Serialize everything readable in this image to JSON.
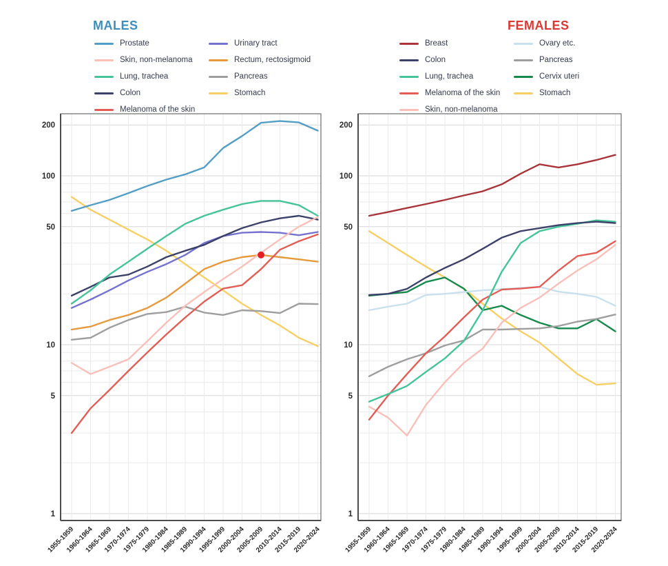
{
  "figure": {
    "background": "#ffffff",
    "grid_minor_color": "#eaeaea",
    "grid_major_color": "#d6d6d6",
    "border_color": "#6b6b6b",
    "axis_text_color": "#2b2b2b"
  },
  "categories": [
    "1955-1959",
    "1960-1964",
    "1965-1969",
    "1970-1974",
    "1975-1979",
    "1980-1984",
    "1985-1989",
    "1990-1994",
    "1995-1999",
    "2000-2004",
    "2005-2009",
    "2010-2014",
    "2015-2019",
    "2020-2024"
  ],
  "y_ticks": [
    1,
    5,
    10,
    50,
    100,
    200
  ],
  "gridline_values": [
    1,
    2,
    3,
    4,
    5,
    6,
    7,
    8,
    9,
    10,
    20,
    30,
    40,
    50,
    60,
    70,
    80,
    90,
    100,
    200
  ],
  "chart_data": [
    {
      "type": "line",
      "id": "males",
      "title": "MALES",
      "title_color": "#3c8ebd",
      "yscale": "log",
      "ylim": [
        0.91,
        233
      ],
      "grid": "on",
      "legend_position": "top",
      "legend_columns": [
        [
          "Prostate",
          "Skin, non-melanoma",
          "Lung, trachea",
          "Colon",
          "Melanoma of the skin"
        ],
        [
          "Urinary tract",
          "Rectum, rectosigmoid",
          "Pancreas",
          "Stomach"
        ]
      ],
      "series": [
        {
          "name": "Prostate",
          "color": "#539ec6",
          "values": [
            62,
            67,
            72,
            79,
            87,
            95,
            102,
            112,
            146,
            172,
            206,
            211,
            207,
            185
          ]
        },
        {
          "name": "Skin, non-melanoma",
          "color": "#f8c0b8",
          "values": [
            7.8,
            6.7,
            7.4,
            8.2,
            10.5,
            13.5,
            17,
            20.5,
            24.5,
            29,
            35,
            42,
            50,
            57
          ]
        },
        {
          "name": "Lung, trachea",
          "color": "#44c49a",
          "values": [
            17.5,
            21,
            26,
            31,
            37,
            44,
            52,
            58,
            63,
            68,
            71,
            71,
            67,
            58
          ]
        },
        {
          "name": "Colon",
          "color": "#3c4169",
          "values": [
            19.5,
            22,
            25,
            26,
            29,
            33,
            36,
            39,
            44,
            49,
            53,
            56,
            58,
            55
          ]
        },
        {
          "name": "Melanoma of the skin",
          "color": "#e25d55",
          "values": [
            3,
            4.2,
            5.4,
            7,
            9,
            11.5,
            14.5,
            18,
            21.5,
            22.5,
            28,
            36.5,
            41,
            45
          ]
        },
        {
          "name": "Urinary tract",
          "color": "#7572cf",
          "values": [
            16.5,
            18.5,
            21,
            24,
            27,
            30,
            34,
            40,
            44,
            46,
            46.5,
            46,
            44.5,
            46.5
          ]
        },
        {
          "name": "Rectum, rectosigmoid",
          "color": "#e79a3c",
          "values": [
            12.3,
            12.8,
            14,
            15,
            16.5,
            19,
            23,
            28,
            31,
            33,
            34,
            33,
            32,
            31
          ]
        },
        {
          "name": "Pancreas",
          "color": "#9e9e9e",
          "values": [
            10.7,
            11,
            12.6,
            14,
            15.2,
            15.6,
            16.8,
            15.5,
            15,
            16,
            15.8,
            15.4,
            17.5,
            17.4
          ]
        },
        {
          "name": "Stomach",
          "color": "#f6cf65",
          "values": [
            75,
            63,
            55,
            48,
            42,
            36,
            30,
            25,
            21,
            17.5,
            15,
            13,
            11,
            9.8
          ]
        }
      ],
      "annotations": [
        {
          "type": "point",
          "series": "Rectum, rectosigmoid",
          "x_label": "2005-2009",
          "x_index": 10,
          "value": 34,
          "color": "#e32226",
          "radius": 5
        }
      ]
    },
    {
      "type": "line",
      "id": "females",
      "title": "FEMALES",
      "title_color": "#da3832",
      "yscale": "log",
      "ylim": [
        0.91,
        233
      ],
      "grid": "on",
      "legend_position": "top",
      "legend_columns": [
        [
          "Breast",
          "Colon",
          "Lung, trachea",
          "Melanoma of the skin",
          "Skin, non-melanoma"
        ],
        [
          "Ovary etc.",
          "Pancreas",
          "Cervix uteri",
          "Stomach"
        ]
      ],
      "series": [
        {
          "name": "Breast",
          "color": "#a93439",
          "values": [
            58,
            61,
            64.5,
            68,
            72,
            76.5,
            81,
            89,
            103,
            117,
            112,
            117,
            124,
            133
          ]
        },
        {
          "name": "Colon",
          "color": "#3c4169",
          "values": [
            19.7,
            20,
            21.4,
            25,
            28.5,
            32,
            37,
            43,
            47,
            49,
            51,
            52.5,
            53.5,
            52.5
          ]
        },
        {
          "name": "Lung, trachea",
          "color": "#44c49a",
          "values": [
            4.6,
            5.1,
            5.7,
            6.9,
            8.3,
            10.5,
            16,
            27,
            40,
            47,
            50,
            52,
            54.5,
            53.5
          ]
        },
        {
          "name": "Melanoma of the skin",
          "color": "#e25d55",
          "values": [
            3.6,
            5,
            6.7,
            8.9,
            11.2,
            14.5,
            18.5,
            21.2,
            21.5,
            22,
            27.5,
            33.5,
            35,
            41
          ]
        },
        {
          "name": "Skin, non-melanoma",
          "color": "#f8c0b8",
          "values": [
            4.3,
            3.7,
            2.9,
            4.4,
            6,
            7.8,
            9.5,
            13.5,
            16.5,
            19,
            23,
            27.5,
            32,
            39
          ]
        },
        {
          "name": "Ovary etc.",
          "color": "#c9e1ed",
          "values": [
            16,
            16.8,
            17.5,
            19.7,
            20,
            20.5,
            21,
            21.3,
            21.7,
            22,
            20.6,
            20,
            19.2,
            17
          ]
        },
        {
          "name": "Pancreas",
          "color": "#9e9e9e",
          "values": [
            6.5,
            7.4,
            8.2,
            8.9,
            9.9,
            10.6,
            12.3,
            12.3,
            12.4,
            12.5,
            12.9,
            13.7,
            14.2,
            15.1
          ]
        },
        {
          "name": "Cervix uteri",
          "color": "#148a4d",
          "values": [
            19.5,
            20,
            20.5,
            23.5,
            25,
            21.5,
            16,
            17,
            15,
            13.5,
            12.5,
            12.5,
            14.2,
            12
          ]
        },
        {
          "name": "Stomach",
          "color": "#f6cf65",
          "values": [
            47,
            40,
            34,
            29,
            25,
            21.5,
            17.5,
            14.3,
            12,
            10.3,
            8.3,
            6.7,
            5.8,
            5.9
          ]
        }
      ],
      "annotations": []
    }
  ]
}
